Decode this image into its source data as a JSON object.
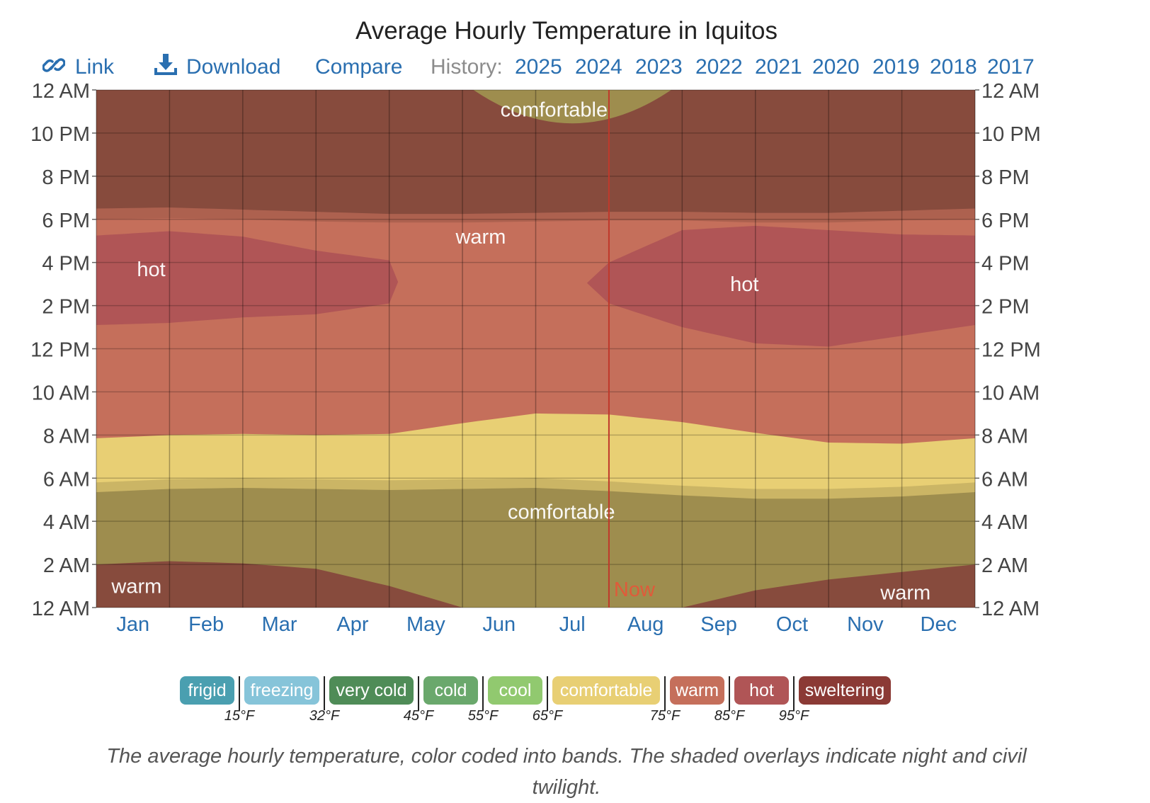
{
  "title": "Average Hourly Temperature in Iquitos",
  "toolbar": {
    "link_label": "Link",
    "download_label": "Download",
    "compare_label": "Compare",
    "history_label": "History:",
    "years": [
      "2025",
      "2024",
      "2023",
      "2022",
      "2021",
      "2020",
      "2019",
      "2018",
      "2017"
    ],
    "link_icon": "chain-link-icon",
    "download_icon": "download-arrow-icon",
    "accent": "#2a6fb0"
  },
  "chart_data": {
    "type": "heatmap",
    "title": "Average Hourly Temperature in Iquitos",
    "x_categories": [
      "Jan",
      "Feb",
      "Mar",
      "Apr",
      "May",
      "Jun",
      "Jul",
      "Aug",
      "Sep",
      "Oct",
      "Nov",
      "Dec"
    ],
    "y_tick_labels": [
      "12 AM",
      "10 PM",
      "8 PM",
      "6 PM",
      "4 PM",
      "2 PM",
      "12 PM",
      "10 AM",
      "8 AM",
      "6 AM",
      "4 AM",
      "2 AM",
      "12 AM"
    ],
    "y_range_hours": [
      0,
      24
    ],
    "bands": {
      "x_month": [
        0,
        1,
        2,
        3,
        4,
        5,
        6,
        7,
        8,
        9,
        10,
        11,
        12
      ],
      "morning_comfortable_to_warm_hour": [
        7.85,
        8.0,
        8.05,
        8.0,
        8.05,
        8.55,
        9.0,
        8.95,
        8.6,
        8.1,
        7.65,
        7.6,
        7.85
      ],
      "warm_to_hot_start_hour": [
        13.1,
        13.2,
        13.45,
        13.6,
        14.1,
        null,
        null,
        14.1,
        13.0,
        12.25,
        12.1,
        12.6,
        13.1
      ],
      "hot_to_warm_end_hour": [
        17.25,
        17.45,
        17.2,
        16.55,
        16.1,
        null,
        null,
        16.0,
        17.5,
        17.7,
        17.5,
        17.3,
        17.25
      ],
      "early_warm_to_comfortable_hour": [
        2.0,
        2.15,
        2.05,
        1.8,
        1.0,
        0,
        0,
        0,
        0,
        0.8,
        1.3,
        1.65,
        2.0
      ],
      "late_night_comfortable_window_hours": {
        "months": [
          5.15,
          7.85
        ],
        "min_hour": 22.45
      }
    },
    "night_end_hour": [
      5.35,
      5.5,
      5.55,
      5.5,
      5.45,
      5.5,
      5.55,
      5.4,
      5.2,
      5.05,
      5.05,
      5.15,
      5.35
    ],
    "twilight_end_hour": [
      5.8,
      5.95,
      6.0,
      5.95,
      5.9,
      5.95,
      6.0,
      5.85,
      5.65,
      5.5,
      5.5,
      5.6,
      5.8
    ],
    "twilight_start_hour": [
      18.0,
      18.05,
      18.0,
      17.9,
      17.85,
      17.85,
      17.9,
      17.95,
      17.95,
      17.85,
      17.85,
      17.95,
      18.0
    ],
    "night_start_hour": [
      18.5,
      18.55,
      18.45,
      18.35,
      18.25,
      18.25,
      18.3,
      18.35,
      18.35,
      18.3,
      18.3,
      18.4,
      18.5
    ],
    "now_marker": {
      "label": "Now",
      "month": 7.0
    },
    "region_labels": [
      {
        "text": "comfortable",
        "month": 6.25,
        "hour": 23.1
      },
      {
        "text": "warm",
        "month": 5.25,
        "hour": 17.2
      },
      {
        "text": "hot",
        "month": 0.75,
        "hour": 15.7
      },
      {
        "text": "hot",
        "month": 8.85,
        "hour": 15.0
      },
      {
        "text": "comfortable",
        "month": 6.35,
        "hour": 4.45
      },
      {
        "text": "warm",
        "month": 0.55,
        "hour": 1.0
      },
      {
        "text": "warm",
        "month": 11.05,
        "hour": 0.7
      }
    ],
    "colors": {
      "comfortable": "#e8cf74",
      "warm": "#c56f5b",
      "hot": "#b05556",
      "sweltering": "#8b3a35",
      "now_line": "#c0392b",
      "month_label": "#2a6fb0"
    }
  },
  "legend": [
    {
      "label": "frigid",
      "color": "#4a9fb0"
    },
    {
      "label": "freezing",
      "color": "#86c4d9"
    },
    {
      "label": "very cold",
      "color": "#4f8c57"
    },
    {
      "label": "cold",
      "color": "#6aa86c"
    },
    {
      "label": "cool",
      "color": "#91c96f"
    },
    {
      "label": "comfortable",
      "color": "#e8cf74"
    },
    {
      "label": "warm",
      "color": "#c56f5b"
    },
    {
      "label": "hot",
      "color": "#b05556"
    },
    {
      "label": "sweltering",
      "color": "#8b3a35"
    }
  ],
  "thresholds": [
    "15°F",
    "32°F",
    "45°F",
    "55°F",
    "65°F",
    "75°F",
    "85°F",
    "95°F"
  ],
  "caption": "The average hourly temperature, color coded into bands. The shaded overlays indicate night and civil twilight."
}
